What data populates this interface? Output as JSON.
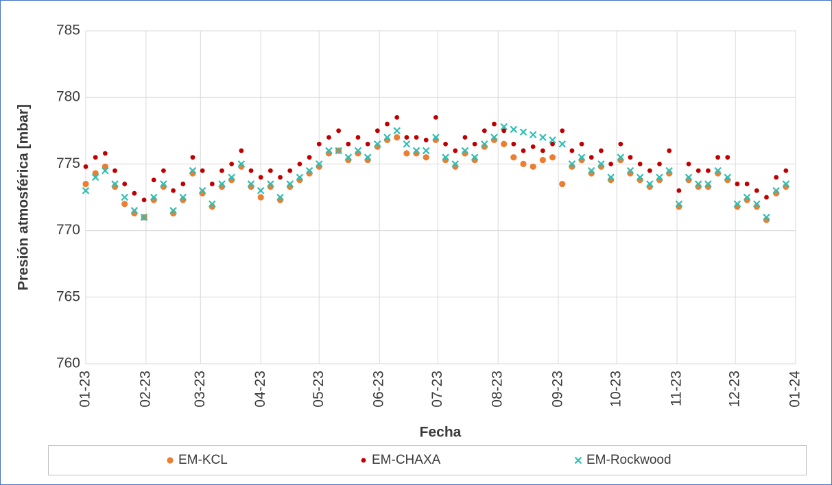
{
  "chart_data": {
    "type": "scatter",
    "y_label": "Presión atmosférica [mbar]",
    "x_label": "Fecha",
    "xlim": [
      0,
      365
    ],
    "ylim": [
      760,
      785
    ],
    "yticks": [
      760,
      765,
      770,
      775,
      780,
      785
    ],
    "xticks": [
      {
        "value": 0,
        "label": "01-23"
      },
      {
        "value": 31,
        "label": "02-23"
      },
      {
        "value": 59,
        "label": "03-23"
      },
      {
        "value": 90,
        "label": "04-23"
      },
      {
        "value": 120,
        "label": "05-23"
      },
      {
        "value": 151,
        "label": "06-23"
      },
      {
        "value": 181,
        "label": "07-23"
      },
      {
        "value": 212,
        "label": "08-23"
      },
      {
        "value": 243,
        "label": "09-23"
      },
      {
        "value": 273,
        "label": "10-23"
      },
      {
        "value": 304,
        "label": "11-23"
      },
      {
        "value": 334,
        "label": "12-23"
      },
      {
        "value": 365,
        "label": "01-24"
      }
    ],
    "grid": true,
    "legend": "bottom",
    "x": [
      0,
      5,
      10,
      15,
      20,
      25,
      30,
      35,
      40,
      45,
      50,
      55,
      60,
      65,
      70,
      75,
      80,
      85,
      90,
      95,
      100,
      105,
      110,
      115,
      120,
      125,
      130,
      135,
      140,
      145,
      150,
      155,
      160,
      165,
      170,
      175,
      180,
      185,
      190,
      195,
      200,
      205,
      210,
      215,
      220,
      225,
      230,
      235,
      240,
      245,
      250,
      255,
      260,
      265,
      270,
      275,
      280,
      285,
      290,
      295,
      300,
      305,
      310,
      315,
      320,
      325,
      330,
      335,
      340,
      345,
      350,
      355,
      360
    ],
    "series": [
      {
        "name": "EM-KCL",
        "color": "#ed7d31",
        "marker": "circle",
        "values": [
          773.5,
          774.3,
          774.8,
          773.3,
          772.0,
          771.3,
          771.0,
          772.3,
          773.3,
          771.3,
          772.3,
          774.3,
          772.8,
          771.8,
          773.3,
          773.8,
          774.8,
          773.3,
          772.5,
          773.3,
          772.3,
          773.3,
          773.8,
          774.3,
          774.8,
          775.8,
          776.0,
          775.3,
          775.8,
          775.3,
          776.3,
          776.8,
          777.0,
          775.8,
          775.8,
          775.5,
          776.8,
          775.3,
          774.8,
          775.8,
          775.3,
          776.3,
          776.8,
          776.5,
          775.5,
          775.0,
          774.8,
          775.3,
          775.5,
          773.5,
          774.8,
          775.3,
          774.3,
          774.8,
          773.8,
          775.3,
          774.3,
          773.8,
          773.3,
          773.8,
          774.3,
          771.8,
          773.8,
          773.3,
          773.3,
          774.3,
          773.8,
          771.8,
          772.3,
          771.8,
          770.8,
          772.8,
          773.3
        ]
      },
      {
        "name": "EM-CHAXA",
        "color": "#c00000",
        "marker": "dot",
        "values": [
          774.8,
          775.5,
          775.8,
          774.5,
          773.5,
          772.8,
          772.3,
          773.8,
          774.5,
          773.0,
          773.5,
          775.5,
          774.5,
          773.5,
          774.5,
          775.0,
          776.0,
          774.5,
          774.0,
          774.5,
          774.0,
          774.5,
          775.0,
          775.5,
          776.5,
          777.0,
          777.5,
          776.5,
          777.0,
          776.5,
          777.5,
          778.0,
          778.5,
          777.0,
          777.0,
          776.8,
          778.5,
          776.5,
          776.0,
          777.0,
          776.5,
          777.5,
          778.0,
          777.5,
          776.5,
          776.0,
          776.3,
          776.0,
          776.5,
          777.5,
          776.0,
          776.5,
          775.5,
          776.0,
          775.0,
          776.5,
          775.5,
          775.0,
          774.5,
          775.0,
          776.0,
          773.0,
          775.0,
          774.5,
          774.5,
          775.5,
          775.5,
          773.5,
          773.5,
          773.0,
          772.5,
          774.0,
          774.5
        ]
      },
      {
        "name": "EM-Rockwood",
        "color": "#2bbfb5",
        "marker": "x",
        "values": [
          773.0,
          774.0,
          774.5,
          773.5,
          772.5,
          771.5,
          771.0,
          772.5,
          773.5,
          771.5,
          772.5,
          774.5,
          773.0,
          772.0,
          773.5,
          774.0,
          775.0,
          773.5,
          773.0,
          773.5,
          772.5,
          773.5,
          774.0,
          774.5,
          775.0,
          776.0,
          776.0,
          775.5,
          776.0,
          775.5,
          776.5,
          777.0,
          777.5,
          776.5,
          776.0,
          776.0,
          777.0,
          775.5,
          775.0,
          776.0,
          775.5,
          776.5,
          777.0,
          777.8,
          777.6,
          777.4,
          777.2,
          777.0,
          776.8,
          776.5,
          775.0,
          775.5,
          774.5,
          775.0,
          774.0,
          775.5,
          774.5,
          774.0,
          773.5,
          774.0,
          774.5,
          772.0,
          774.0,
          773.5,
          773.5,
          774.5,
          774.0,
          772.0,
          772.5,
          772.0,
          771.0,
          773.0,
          773.5
        ]
      }
    ]
  }
}
